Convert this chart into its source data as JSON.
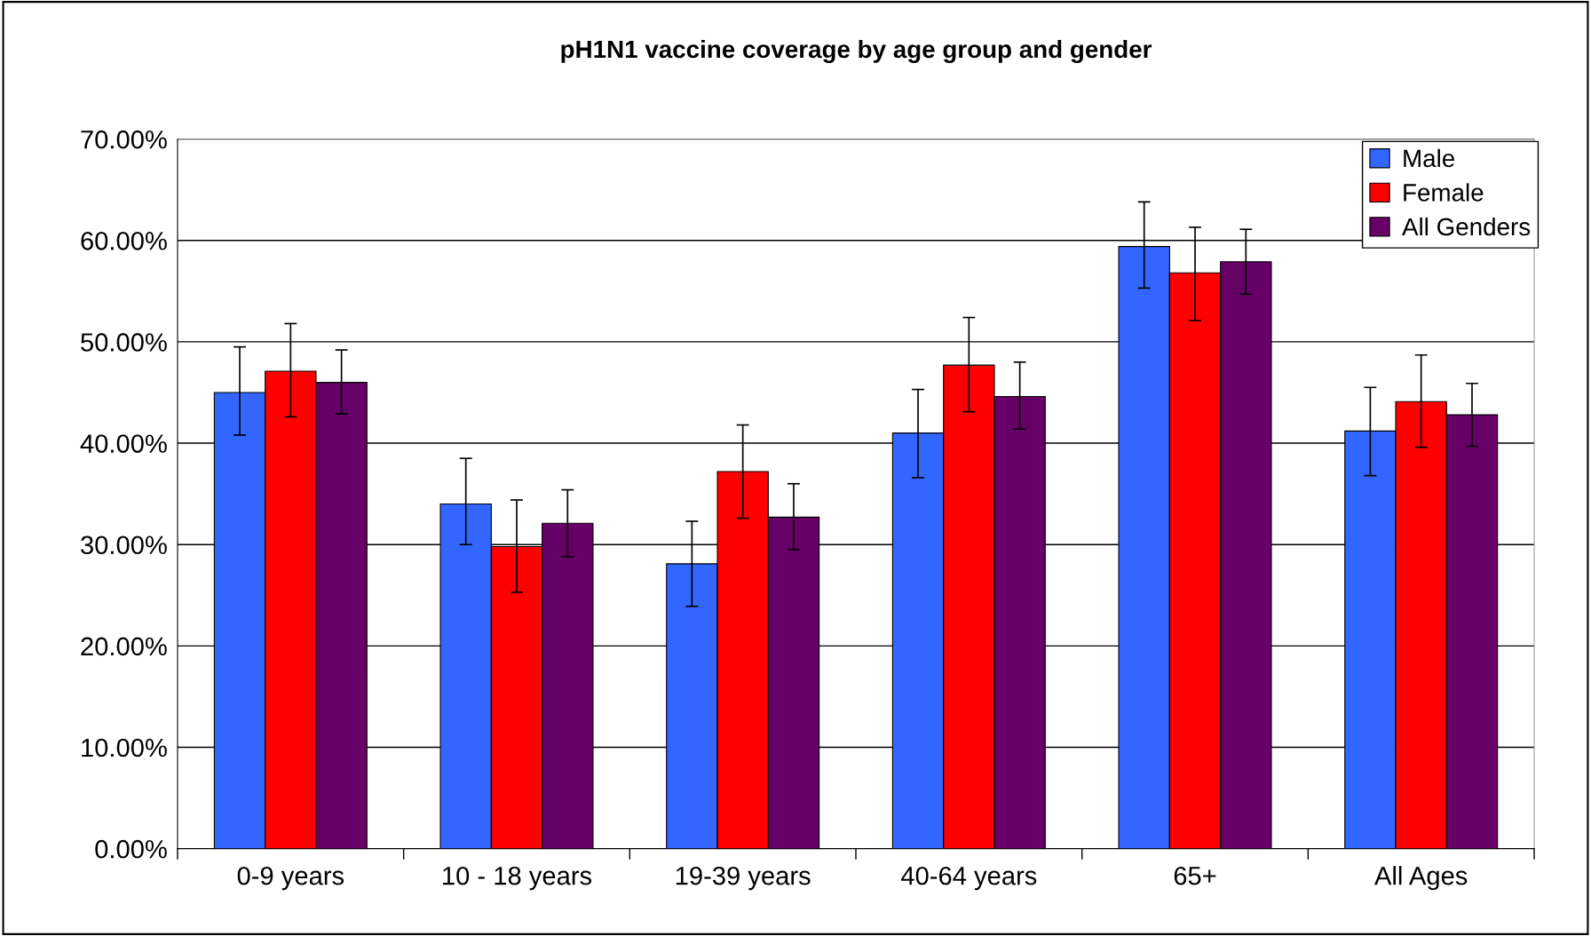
{
  "chart_data": {
    "type": "bar",
    "title": "pH1N1 vaccine coverage by age group and gender",
    "categories": [
      "0-9 years",
      "10 - 18 years",
      "19-39 years",
      "40-64 years",
      "65+",
      "All Ages"
    ],
    "series": [
      {
        "name": "Male",
        "color": "#3366ff",
        "values": [
          45.0,
          34.0,
          28.1,
          41.0,
          59.4,
          41.2
        ],
        "errors": [
          [
            40.8,
            49.5
          ],
          [
            30.0,
            38.5
          ],
          [
            23.9,
            32.3
          ],
          [
            36.6,
            45.3
          ],
          [
            55.3,
            63.8
          ],
          [
            36.8,
            45.5
          ]
        ]
      },
      {
        "name": "Female",
        "color": "#ff0000",
        "values": [
          47.1,
          29.8,
          37.2,
          47.7,
          56.8,
          44.1
        ],
        "errors": [
          [
            42.6,
            51.8
          ],
          [
            25.3,
            34.4
          ],
          [
            32.6,
            41.8
          ],
          [
            43.1,
            52.4
          ],
          [
            52.1,
            61.3
          ],
          [
            39.6,
            48.7
          ]
        ]
      },
      {
        "name": "All Genders",
        "color": "#660066",
        "values": [
          46.0,
          32.1,
          32.7,
          44.6,
          57.9,
          42.8
        ],
        "errors": [
          [
            42.9,
            49.2
          ],
          [
            28.8,
            35.4
          ],
          [
            29.5,
            36.0
          ],
          [
            41.4,
            48.0
          ],
          [
            54.7,
            61.1
          ],
          [
            39.7,
            45.9
          ]
        ]
      }
    ],
    "ylim": [
      0,
      70
    ],
    "yticks": [
      {
        "value": 0,
        "label": "0.00%"
      },
      {
        "value": 10,
        "label": "10.00%"
      },
      {
        "value": 20,
        "label": "20.00%"
      },
      {
        "value": 30,
        "label": "30.00%"
      },
      {
        "value": 40,
        "label": "40.00%"
      },
      {
        "value": 50,
        "label": "50.00%"
      },
      {
        "value": 60,
        "label": "60.00%"
      },
      {
        "value": 70,
        "label": "70.00%"
      }
    ],
    "grid": "y",
    "legend": "top right"
  }
}
